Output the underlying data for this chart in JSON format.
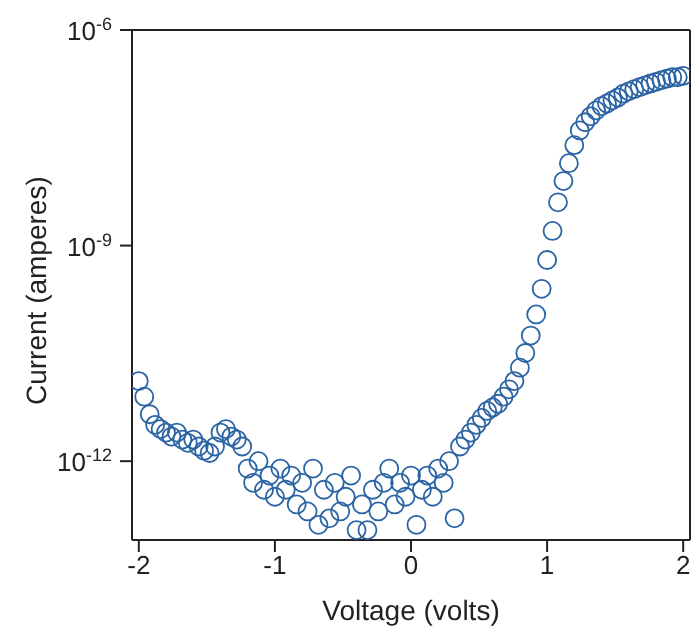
{
  "chart_data": {
    "type": "scatter",
    "xlabel": "Voltage (volts)",
    "ylabel": "Current (amperes)",
    "log": "y",
    "marker": "circle",
    "xlim": [
      -2.05,
      2.05
    ],
    "xticks": [
      -2,
      -1,
      0,
      1,
      2
    ],
    "ylim": [
      8e-14,
      1e-06
    ],
    "yticks": [
      {
        "value": 1e-12,
        "label": "10$^{-12}$"
      },
      {
        "value": 1e-09,
        "label": "10$^{-9}$"
      },
      {
        "value": 1e-06,
        "label": "10$^{-6}$"
      }
    ],
    "series": [
      {
        "color": "#2b64a4",
        "x": [
          -2,
          -1.96,
          -1.92,
          -1.88,
          -1.84,
          -1.8,
          -1.76,
          -1.72,
          -1.68,
          -1.64,
          -1.6,
          -1.56,
          -1.52,
          -1.48,
          -1.44,
          -1.4,
          -1.36,
          -1.32,
          -1.28,
          -1.24,
          -1.2,
          -1.16,
          -1.12,
          -1.08,
          -1.04,
          -1,
          -0.96,
          -0.92,
          -0.88,
          -0.84,
          -0.8,
          -0.76,
          -0.72,
          -0.68,
          -0.64,
          -0.6,
          -0.56,
          -0.52,
          -0.48,
          -0.44,
          -0.4,
          -0.36,
          -0.32,
          -0.28,
          -0.24,
          -0.2,
          -0.16,
          -0.12,
          -0.08,
          -0.04,
          0,
          0.04,
          0.08,
          0.12,
          0.16,
          0.2,
          0.24,
          0.28,
          0.32,
          0.36,
          0.4,
          0.44,
          0.48,
          0.52,
          0.56,
          0.6,
          0.64,
          0.68,
          0.72,
          0.76,
          0.8,
          0.84,
          0.88,
          0.92,
          0.96,
          1,
          1.04,
          1.08,
          1.12,
          1.16,
          1.2,
          1.24,
          1.28,
          1.32,
          1.36,
          1.4,
          1.44,
          1.48,
          1.52,
          1.56,
          1.6,
          1.64,
          1.68,
          1.72,
          1.76,
          1.8,
          1.84,
          1.88,
          1.92,
          1.96,
          2
        ],
        "values": [
          1.3e-11,
          7.9e-12,
          4.5e-12,
          3.2e-12,
          2.8e-12,
          2.5e-12,
          2.2e-12,
          2.5e-12,
          2e-12,
          1.8e-12,
          2e-12,
          1.6e-12,
          1.4e-12,
          1.3e-12,
          1.6e-12,
          2.5e-12,
          2.8e-12,
          2.2e-12,
          2e-12,
          1.6e-12,
          7.9e-13,
          5e-13,
          1e-12,
          4e-13,
          6.3e-13,
          3.2e-13,
          7.9e-13,
          4e-13,
          6.3e-13,
          2.5e-13,
          5e-13,
          2e-13,
          7.9e-13,
          1.3e-13,
          4e-13,
          1.6e-13,
          5e-13,
          2e-13,
          3.2e-13,
          6.3e-13,
          1.1e-13,
          2.5e-13,
          1.1e-13,
          4e-13,
          2e-13,
          5e-13,
          7.9e-13,
          2.5e-13,
          5e-13,
          3.2e-13,
          6.3e-13,
          1.3e-13,
          4e-13,
          6.3e-13,
          3.2e-13,
          7.9e-13,
          5e-13,
          1e-12,
          1.6e-13,
          1.6e-12,
          2e-12,
          2.5e-12,
          3.2e-12,
          4e-12,
          5e-12,
          5.6e-12,
          6.3e-12,
          7.9e-12,
          1e-11,
          1.3e-11,
          2e-11,
          3.2e-11,
          5.6e-11,
          1.1e-10,
          2.5e-10,
          6.3e-10,
          1.6e-09,
          4e-09,
          7.9e-09,
          1.4e-08,
          2.5e-08,
          4e-08,
          5.2e-08,
          6.3e-08,
          7.6e-08,
          8.7e-08,
          9.5e-08,
          1.05e-07,
          1.15e-07,
          1.3e-07,
          1.4e-07,
          1.5e-07,
          1.6e-07,
          1.7e-07,
          1.8e-07,
          1.9e-07,
          2e-07,
          2.1e-07,
          2.2e-07,
          2.2e-07,
          2.3e-07
        ]
      }
    ]
  }
}
